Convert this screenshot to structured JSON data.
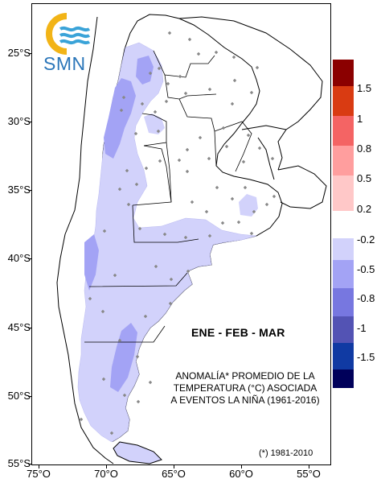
{
  "logo": {
    "text": "SMN",
    "icon": "smn-sun-waves-logo"
  },
  "season": "ENE - FEB - MAR",
  "caption_lines": [
    "ANOMALÍA* PROMEDIO DE LA",
    "TEMPERATURA (°C) ASOCIADA",
    "A EVENTOS LA NIÑA (1961-2016)"
  ],
  "footnote": "(*) 1981-2010",
  "axes": {
    "lat_labels": [
      "25°S",
      "30°S",
      "35°S",
      "40°S",
      "45°S",
      "50°S",
      "55°S"
    ],
    "lon_labels": [
      "75°O",
      "70°O",
      "65°O",
      "60°O",
      "55°O"
    ]
  },
  "legend": {
    "positive": [
      {
        "label": "1.5",
        "color": "#8b0000"
      },
      {
        "label": "1",
        "color": "#d93b12"
      },
      {
        "label": "0.8",
        "color": "#f46464"
      },
      {
        "label": "0.5",
        "color": "#ff9e9e"
      },
      {
        "label": "0.2",
        "color": "#ffc8c8"
      }
    ],
    "negative": [
      {
        "label": "-0.2",
        "color": "#d2d2fb"
      },
      {
        "label": "-0.5",
        "color": "#a3a3f5"
      },
      {
        "label": "-0.8",
        "color": "#7777e0"
      },
      {
        "label": "-1",
        "color": "#5353b4"
      },
      {
        "label": "-1.5",
        "color": "#103aa3"
      },
      {
        "label": "",
        "color": "#00005a"
      }
    ]
  },
  "colors": {
    "anomaly_light": "#d2d2fb",
    "anomaly_medium": "#a3a3f5",
    "station": "#888888",
    "border": "#000000"
  }
}
